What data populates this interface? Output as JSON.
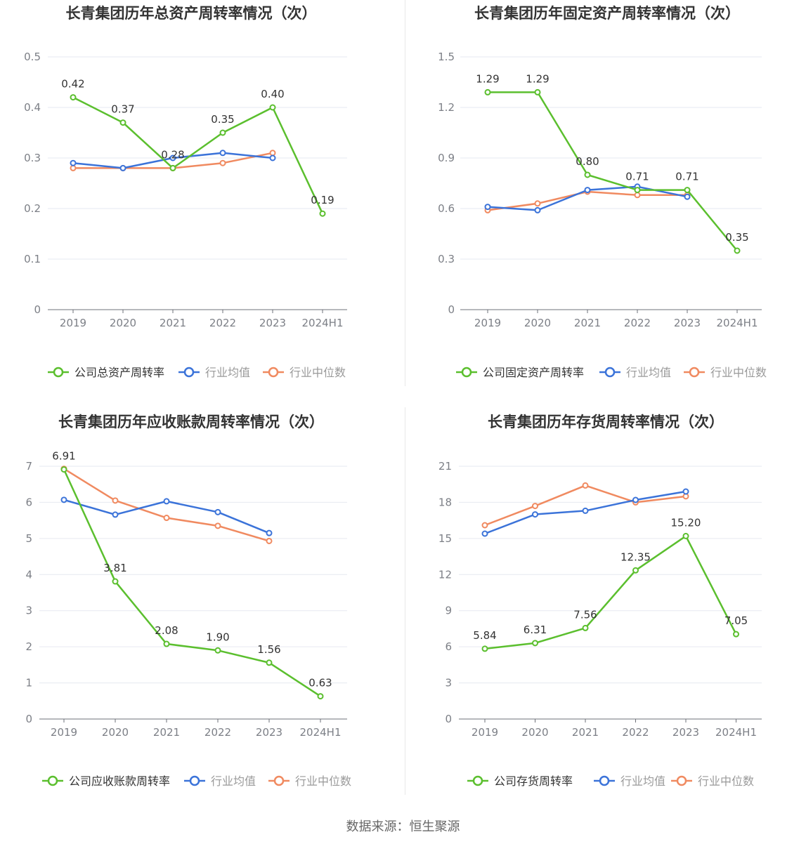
{
  "source": "数据来源：恒生聚源",
  "colors": {
    "company": "#5bbf2e",
    "avg": "#3b73d9",
    "median": "#f08a60",
    "grid": "#e6e9f0",
    "axis": "#7c7f86",
    "text": "#333333"
  },
  "chart_data": [
    {
      "type": "line",
      "title": "长青集团历年总资产周转率情况（次）",
      "categories": [
        "2019",
        "2020",
        "2021",
        "2022",
        "2023",
        "2024H1"
      ],
      "yticks": [
        0,
        0.1,
        0.2,
        0.3,
        0.4,
        0.5
      ],
      "ytick_labels": [
        "0",
        "0.1",
        "0.2",
        "0.3",
        "0.4",
        "0.5"
      ],
      "ylim": [
        0,
        0.5
      ],
      "series": [
        {
          "name": "公司总资产周转率",
          "role": "company",
          "values": [
            0.42,
            0.37,
            0.28,
            0.35,
            0.4,
            0.19
          ],
          "labels": [
            "0.42",
            "0.37",
            "0.28",
            "0.35",
            "0.40",
            "0.19"
          ]
        },
        {
          "name": "行业均值",
          "role": "avg",
          "values": [
            0.29,
            0.28,
            0.3,
            0.31,
            0.3,
            null
          ]
        },
        {
          "name": "行业中位数",
          "role": "median",
          "values": [
            0.28,
            0.28,
            0.28,
            0.29,
            0.31,
            null
          ]
        }
      ]
    },
    {
      "type": "line",
      "title": "长青集团历年固定资产周转率情况（次）",
      "categories": [
        "2019",
        "2020",
        "2021",
        "2022",
        "2023",
        "2024H1"
      ],
      "yticks": [
        0,
        0.3,
        0.6,
        0.9,
        1.2,
        1.5
      ],
      "ytick_labels": [
        "0",
        "0.3",
        "0.6",
        "0.9",
        "1.2",
        "1.5"
      ],
      "ylim": [
        0,
        1.5
      ],
      "series": [
        {
          "name": "公司固定资产周转率",
          "role": "company",
          "values": [
            1.29,
            1.29,
            0.8,
            0.71,
            0.71,
            0.35
          ],
          "labels": [
            "1.29",
            "1.29",
            "0.80",
            "0.71",
            "0.71",
            "0.35"
          ]
        },
        {
          "name": "行业均值",
          "role": "avg",
          "values": [
            0.61,
            0.59,
            0.71,
            0.73,
            0.67,
            null
          ]
        },
        {
          "name": "行业中位数",
          "role": "median",
          "values": [
            0.59,
            0.63,
            0.7,
            0.68,
            0.68,
            null
          ]
        }
      ]
    },
    {
      "type": "line",
      "title": "长青集团历年应收账款周转率情况（次）",
      "categories": [
        "2019",
        "2020",
        "2021",
        "2022",
        "2023",
        "2024H1"
      ],
      "yticks": [
        0,
        1,
        2,
        3,
        4,
        5,
        6,
        7
      ],
      "ytick_labels": [
        "0",
        "1",
        "2",
        "3",
        "4",
        "5",
        "6",
        "7"
      ],
      "ylim": [
        0,
        7
      ],
      "series": [
        {
          "name": "公司应收账款周转率",
          "role": "company",
          "values": [
            6.91,
            3.81,
            2.08,
            1.9,
            1.56,
            0.63
          ],
          "labels": [
            "6.91",
            "3.81",
            "2.08",
            "1.90",
            "1.56",
            "0.63"
          ]
        },
        {
          "name": "行业均值",
          "role": "avg",
          "values": [
            6.07,
            5.66,
            6.03,
            5.73,
            5.15,
            null
          ]
        },
        {
          "name": "行业中位数",
          "role": "median",
          "values": [
            6.93,
            6.05,
            5.57,
            5.35,
            4.93,
            null
          ]
        }
      ]
    },
    {
      "type": "line",
      "title": "长青集团历年存货周转率情况（次）",
      "categories": [
        "2019",
        "2020",
        "2021",
        "2022",
        "2023",
        "2024H1"
      ],
      "yticks": [
        0,
        3,
        6,
        9,
        12,
        15,
        18,
        21
      ],
      "ytick_labels": [
        "0",
        "3",
        "6",
        "9",
        "12",
        "15",
        "18",
        "21"
      ],
      "ylim": [
        0,
        21
      ],
      "series": [
        {
          "name": "公司存货周转率",
          "role": "company",
          "values": [
            5.84,
            6.31,
            7.56,
            12.35,
            15.2,
            7.05
          ],
          "labels": [
            "5.84",
            "6.31",
            "7.56",
            "12.35",
            "15.20",
            "7.05"
          ]
        },
        {
          "name": "行业均值",
          "role": "avg",
          "values": [
            15.4,
            17.0,
            17.3,
            18.2,
            18.9,
            null
          ]
        },
        {
          "name": "行业中位数",
          "role": "median",
          "values": [
            16.1,
            17.7,
            19.4,
            18.0,
            18.5,
            null
          ]
        }
      ]
    }
  ]
}
